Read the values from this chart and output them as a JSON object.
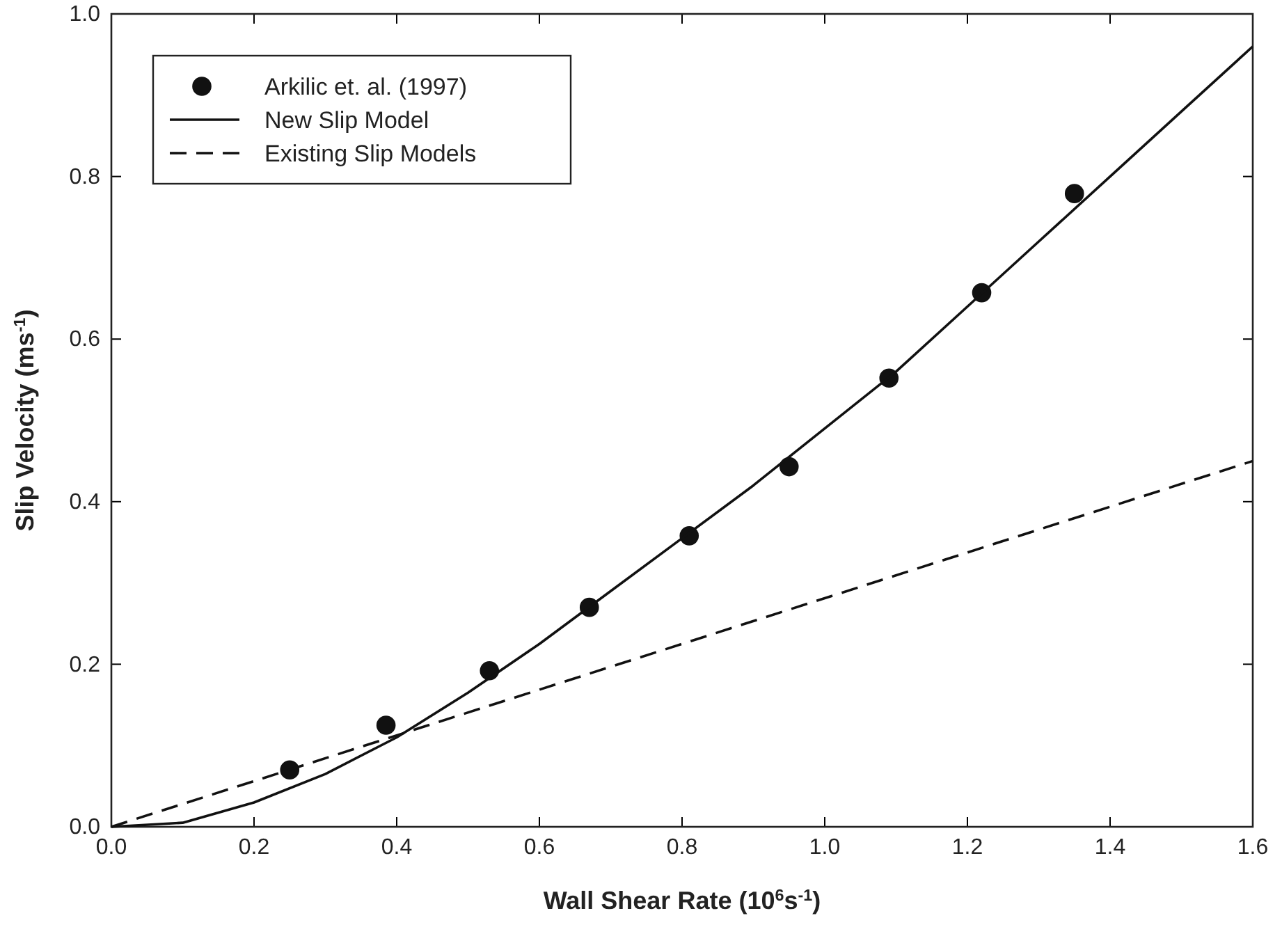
{
  "chart_data": {
    "type": "line",
    "xlabel": "Wall Shear Rate (10$^{6}$s$^{-1}$)",
    "ylabel": "Slip Velocity (ms$^{-1}$)",
    "xlim": [
      0,
      1.6
    ],
    "xticks": [
      "0.0",
      0.2,
      0.4,
      0.6,
      0.8,
      "1.0",
      1.2,
      1.4,
      1.6
    ],
    "ylim": [
      0,
      1
    ],
    "yticks": [
      "0.0",
      0.2,
      0.4,
      0.6,
      0.8,
      "1.0"
    ],
    "grid": false,
    "legend": "top left",
    "series": [
      {
        "name": "Arkilic et. al. (1997)",
        "type": "scatter",
        "marker": "circle",
        "color": "#111111",
        "x": [
          0.25,
          0.385,
          0.53,
          0.67,
          0.81,
          0.95,
          1.09,
          1.22,
          1.35
        ],
        "values": [
          0.07,
          0.125,
          0.192,
          0.27,
          0.358,
          0.443,
          0.552,
          0.657,
          0.779
        ]
      },
      {
        "name": "New Slip Model",
        "type": "line",
        "line_style": "solid",
        "color": "#111111",
        "x": [
          0,
          0.1,
          0.2,
          0.3,
          0.4,
          0.5,
          0.6,
          0.7,
          0.8,
          0.9,
          1.0,
          1.1,
          1.2,
          1.3,
          1.4,
          1.5,
          1.6
        ],
        "values": [
          0,
          0.005,
          0.03,
          0.065,
          0.11,
          0.165,
          0.225,
          0.29,
          0.355,
          0.42,
          0.49,
          0.56,
          0.64,
          0.72,
          0.8,
          0.88,
          0.96
        ]
      },
      {
        "name": "Existing Slip Models",
        "type": "line",
        "line_style": "dashed",
        "color": "#111111",
        "x": [
          0,
          1.6
        ],
        "values": [
          0,
          0.45
        ]
      }
    ]
  }
}
